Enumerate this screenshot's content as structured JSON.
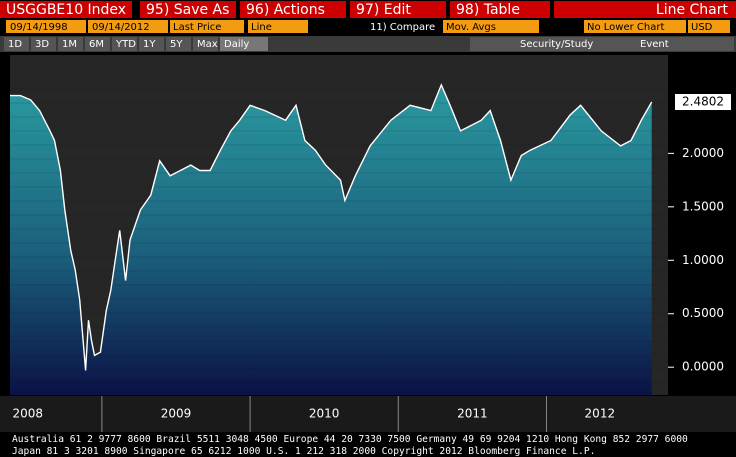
{
  "menu": {
    "title": "USGGBE10 Index",
    "save_as": "95) Save As",
    "actions": "96) Actions",
    "edit": "97) Edit",
    "table": "98) Table",
    "chart_kind": "Line Chart"
  },
  "settings": {
    "start_date": "09/14/1998",
    "end_date": "09/14/2012",
    "field": "Last Price",
    "style": "Line",
    "compare": "11) Compare",
    "mov_avgs": "Mov. Avgs",
    "lower_chart": "No Lower Chart",
    "currency": "USD"
  },
  "periods": [
    "1D",
    "3D",
    "1M",
    "6M",
    "YTD",
    "1Y",
    "5Y",
    "Max",
    "Daily"
  ],
  "tools": {
    "security_study": "Security/Study",
    "event": "Event"
  },
  "footer": [
    "Australia 61 2 9777 8600 Brazil 5511 3048 4500 Europe 44 20 7330 7500 Germany 49 69 9204 1210 Hong Kong 852 2977 6000",
    "Japan 81 3 3201 8900         Singapore 65 6212 1000         U.S. 1 212 318 2000         Copyright 2012 Bloomberg Finance L.P."
  ],
  "chart_data": {
    "type": "line",
    "x": [
      2008.38,
      2008.45,
      2008.52,
      2008.58,
      2008.65,
      2008.68,
      2008.72,
      2008.75,
      2008.79,
      2008.82,
      2008.85,
      2008.89,
      2008.91,
      2008.93,
      2008.95,
      2008.99,
      2009.03,
      2009.06,
      2009.09,
      2009.12,
      2009.16,
      2009.19,
      2009.26,
      2009.33,
      2009.39,
      2009.46,
      2009.53,
      2009.6,
      2009.66,
      2009.73,
      2009.8,
      2009.87,
      2009.93,
      2010.0,
      2010.1,
      2010.24,
      2010.31,
      2010.37,
      2010.44,
      2010.51,
      2010.61,
      2010.64,
      2010.71,
      2010.81,
      2010.95,
      2011.08,
      2011.22,
      2011.29,
      2011.35,
      2011.42,
      2011.56,
      2011.62,
      2011.69,
      2011.76,
      2011.83,
      2011.89,
      2012.03,
      2012.16,
      2012.23,
      2012.37,
      2012.5,
      2012.57,
      2012.64,
      2012.71
    ],
    "series": [
      {
        "name": "USGGBE10 Index",
        "color": "#ffffff",
        "values": [
          2.54,
          2.54,
          2.5,
          2.4,
          2.21,
          2.12,
          1.84,
          1.47,
          1.09,
          0.91,
          0.63,
          -0.03,
          0.44,
          0.25,
          0.11,
          0.14,
          0.53,
          0.72,
          1.0,
          1.28,
          0.81,
          1.19,
          1.47,
          1.61,
          1.93,
          1.79,
          1.84,
          1.89,
          1.84,
          1.84,
          2.03,
          2.21,
          2.31,
          2.45,
          2.4,
          2.31,
          2.45,
          2.12,
          2.03,
          1.89,
          1.75,
          1.56,
          1.79,
          2.07,
          2.31,
          2.45,
          2.4,
          2.64,
          2.45,
          2.21,
          2.31,
          2.4,
          2.12,
          1.75,
          1.98,
          2.03,
          2.12,
          2.36,
          2.45,
          2.21,
          2.07,
          2.12,
          2.31,
          2.4802
        ]
      }
    ],
    "xlim": [
      2008.38,
      2012.82
    ],
    "xticks": [
      {
        "value": 2008.5,
        "label": "2008"
      },
      {
        "value": 2009.5,
        "label": "2009"
      },
      {
        "value": 2010.5,
        "label": "2010"
      },
      {
        "value": 2011.5,
        "label": "2011"
      },
      {
        "value": 2012.36,
        "label": "2012"
      }
    ],
    "ylim": [
      -0.26,
      2.92
    ],
    "yticks": [
      {
        "value": 0,
        "label": "0.0000"
      },
      {
        "value": 0.5,
        "label": "0.5000"
      },
      {
        "value": 1,
        "label": "1.0000"
      },
      {
        "value": 1.5,
        "label": "1.5000"
      },
      {
        "value": 2,
        "label": "2.0000"
      }
    ]
  }
}
